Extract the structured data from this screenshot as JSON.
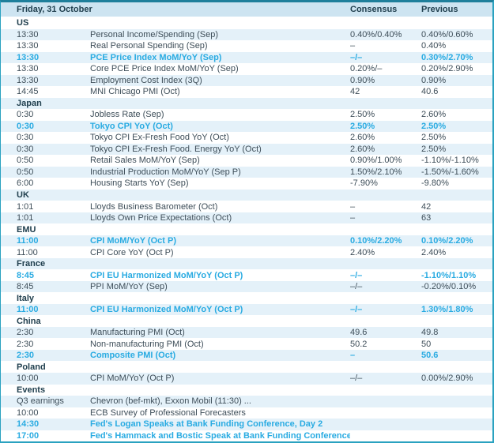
{
  "header": {
    "date_label": "Friday, 31 October",
    "consensus_label": "Consensus",
    "previous_label": "Previous"
  },
  "colors": {
    "accent": "#29abe2",
    "header_bg": "#cde4f1",
    "stripe_bg": "#e4f1f9",
    "border_top": "#1e7f9b",
    "border": "#2aa2c0",
    "text_bold": "#21404f",
    "text": "#3e4e59"
  },
  "sections": [
    {
      "name": "US",
      "rows": [
        {
          "time": "13:30",
          "event": "Personal Income/Spending (Sep)",
          "consensus": "0.40%/0.40%",
          "previous": "0.40%/0.60%",
          "highlight": false
        },
        {
          "time": "13:30",
          "event": "Real Personal Spending (Sep)",
          "consensus": "–",
          "previous": "0.40%",
          "highlight": false
        },
        {
          "time": "13:30",
          "event": "PCE Price Index MoM/YoY (Sep)",
          "consensus": "–/–",
          "previous": "0.30%/2.70%",
          "highlight": true
        },
        {
          "time": "13:30",
          "event": "Core PCE Price Index MoM/YoY (Sep)",
          "consensus": "0.20%/–",
          "previous": "0.20%/2.90%",
          "highlight": false
        },
        {
          "time": "13:30",
          "event": "Employment Cost Index (3Q)",
          "consensus": "0.90%",
          "previous": "0.90%",
          "highlight": false
        },
        {
          "time": "14:45",
          "event": "MNI Chicago PMI (Oct)",
          "consensus": "42",
          "previous": "40.6",
          "highlight": false
        }
      ]
    },
    {
      "name": "Japan",
      "rows": [
        {
          "time": "0:30",
          "event": "Jobless Rate (Sep)",
          "consensus": "2.50%",
          "previous": "2.60%",
          "highlight": false
        },
        {
          "time": "0:30",
          "event": "Tokyo CPI YoY (Oct)",
          "consensus": "2.50%",
          "previous": "2.50%",
          "highlight": true
        },
        {
          "time": "0:30",
          "event": "Tokyo CPI Ex-Fresh Food YoY (Oct)",
          "consensus": "2.60%",
          "previous": "2.50%",
          "highlight": false
        },
        {
          "time": "0:30",
          "event": "Tokyo CPI Ex-Fresh Food. Energy YoY (Oct)",
          "consensus": "2.60%",
          "previous": "2.50%",
          "highlight": false
        },
        {
          "time": "0:50",
          "event": "Retail Sales MoM/YoY (Sep)",
          "consensus": "0.90%/1.00%",
          "previous": "-1.10%/-1.10%",
          "highlight": false
        },
        {
          "time": "0:50",
          "event": "Industrial Production MoM/YoY (Sep P)",
          "consensus": "1.50%/2.10%",
          "previous": "-1.50%/-1.60%",
          "highlight": false
        },
        {
          "time": "6:00",
          "event": "Housing Starts YoY (Sep)",
          "consensus": "-7.90%",
          "previous": "-9.80%",
          "highlight": false
        }
      ]
    },
    {
      "name": "UK",
      "rows": [
        {
          "time": "1:01",
          "event": "Lloyds Business Barometer (Oct)",
          "consensus": "–",
          "previous": "42",
          "highlight": false
        },
        {
          "time": "1:01",
          "event": "Lloyds Own Price Expectations (Oct)",
          "consensus": "–",
          "previous": "63",
          "highlight": false
        }
      ]
    },
    {
      "name": "EMU",
      "rows": [
        {
          "time": "11:00",
          "event": "CPI MoM/YoY (Oct P)",
          "consensus": "0.10%/2.20%",
          "previous": "0.10%/2.20%",
          "highlight": true
        },
        {
          "time": "11:00",
          "event": "CPI Core YoY (Oct P)",
          "consensus": "2.40%",
          "previous": "2.40%",
          "highlight": false
        }
      ]
    },
    {
      "name": "France",
      "rows": [
        {
          "time": "8:45",
          "event": "CPI EU Harmonized MoM/YoY (Oct P)",
          "consensus": "–/–",
          "previous": "-1.10%/1.10%",
          "highlight": true
        },
        {
          "time": "8:45",
          "event": "PPI MoM/YoY (Sep)",
          "consensus": "–/–",
          "previous": "-0.20%/0.10%",
          "highlight": false
        }
      ]
    },
    {
      "name": "Italy",
      "rows": [
        {
          "time": "11:00",
          "event": "CPI EU Harmonized MoM/YoY (Oct P)",
          "consensus": "–/–",
          "previous": "1.30%/1.80%",
          "highlight": true
        }
      ]
    },
    {
      "name": "China",
      "rows": [
        {
          "time": "2:30",
          "event": "Manufacturing PMI (Oct)",
          "consensus": "49.6",
          "previous": "49.8",
          "highlight": false
        },
        {
          "time": "2:30",
          "event": "Non-manufacturing PMI (Oct)",
          "consensus": "50.2",
          "previous": "50",
          "highlight": false
        },
        {
          "time": "2:30",
          "event": "Composite PMI (Oct)",
          "consensus": "–",
          "previous": "50.6",
          "highlight": true
        }
      ]
    },
    {
      "name": "Poland",
      "rows": [
        {
          "time": "10:00",
          "event": "CPI MoM/YoY (Oct P)",
          "consensus": "–/–",
          "previous": "0.00%/2.90%",
          "highlight": false
        }
      ]
    },
    {
      "name": "Events",
      "rows": [
        {
          "time": "Q3 earnings",
          "event": "Chevron (bef-mkt), Exxon Mobil (11:30) ...",
          "consensus": "",
          "previous": "",
          "highlight": false
        },
        {
          "time": "10:00",
          "event": "ECB Survey of Professional Forecasters",
          "consensus": "",
          "previous": "",
          "highlight": false
        },
        {
          "time": "14:30",
          "event": "Fed's Logan Speaks at Bank Funding Conference, Day 2",
          "consensus": "",
          "previous": "",
          "highlight": true
        },
        {
          "time": "17:00",
          "event": "Fed's Hammack and Bostic Speak at Bank Funding Conference",
          "consensus": "",
          "previous": "",
          "highlight": true
        }
      ]
    }
  ]
}
